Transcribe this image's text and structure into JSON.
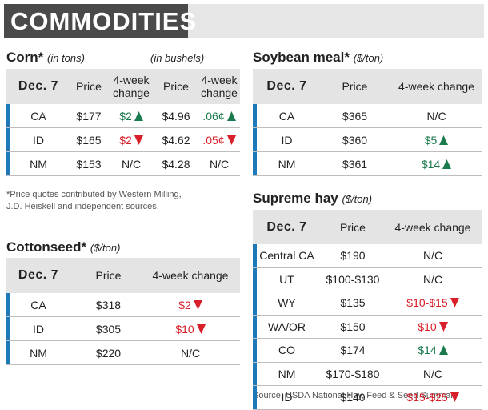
{
  "header": {
    "title": "COMMODITIES"
  },
  "footnote": [
    "*Price quotes contributed by Western Milling,",
    "J.D. Heiskell and independent sources."
  ],
  "source": "Source: USDA National Hay, Feed & Seed Summary",
  "corn": {
    "title": "Corn*",
    "unit": "(in tons)",
    "unit2": "(in bushels)",
    "columns": [
      "Dec. 7",
      "Price",
      "4-week change",
      "Price",
      "4-week change"
    ],
    "rows": [
      [
        "CA",
        "$177",
        {
          "text": "$2",
          "trend": "up"
        },
        "$4.96",
        {
          "text": ".06¢",
          "trend": "up"
        }
      ],
      [
        "ID",
        "$165",
        {
          "text": "$2",
          "trend": "down"
        },
        "$4.62",
        {
          "text": ".05¢",
          "trend": "down"
        }
      ],
      [
        "NM",
        "$153",
        "N/C",
        "$4.28",
        "N/C"
      ]
    ]
  },
  "soybean_meal": {
    "title": "Soybean meal*",
    "unit": "($/ton)",
    "columns": [
      "Dec. 7",
      "Price",
      "4-week change"
    ],
    "rows": [
      [
        "CA",
        "$365",
        "N/C"
      ],
      [
        "ID",
        "$360",
        {
          "text": "$5",
          "trend": "up"
        }
      ],
      [
        "NM",
        "$361",
        {
          "text": "$14",
          "trend": "up"
        }
      ]
    ]
  },
  "cottonseed": {
    "title": "Cottonseed*",
    "unit": "($/ton)",
    "columns": [
      "Dec. 7",
      "Price",
      "4-week change"
    ],
    "rows": [
      [
        "CA",
        "$318",
        {
          "text": "$2",
          "trend": "down"
        }
      ],
      [
        "ID",
        "$305",
        {
          "text": "$10",
          "trend": "down"
        }
      ],
      [
        "NM",
        "$220",
        "N/C"
      ]
    ]
  },
  "supreme_hay": {
    "title": "Supreme hay",
    "unit": "($/ton)",
    "columns": [
      "Dec. 7",
      "Price",
      "4-week change"
    ],
    "rows": [
      [
        "Central CA",
        "$190",
        "N/C"
      ],
      [
        "UT",
        "$100-$130",
        "N/C"
      ],
      [
        "WY",
        "$135",
        {
          "text": "$10-$15",
          "trend": "down"
        }
      ],
      [
        "WA/OR",
        "$150",
        {
          "text": "$10",
          "trend": "down"
        }
      ],
      [
        "CO",
        "$174",
        {
          "text": "$14",
          "trend": "up"
        }
      ],
      [
        "NM",
        "$170-$180",
        "N/C"
      ],
      [
        "ID",
        "$140",
        {
          "text": "$15-$25",
          "trend": "down"
        }
      ]
    ]
  }
}
